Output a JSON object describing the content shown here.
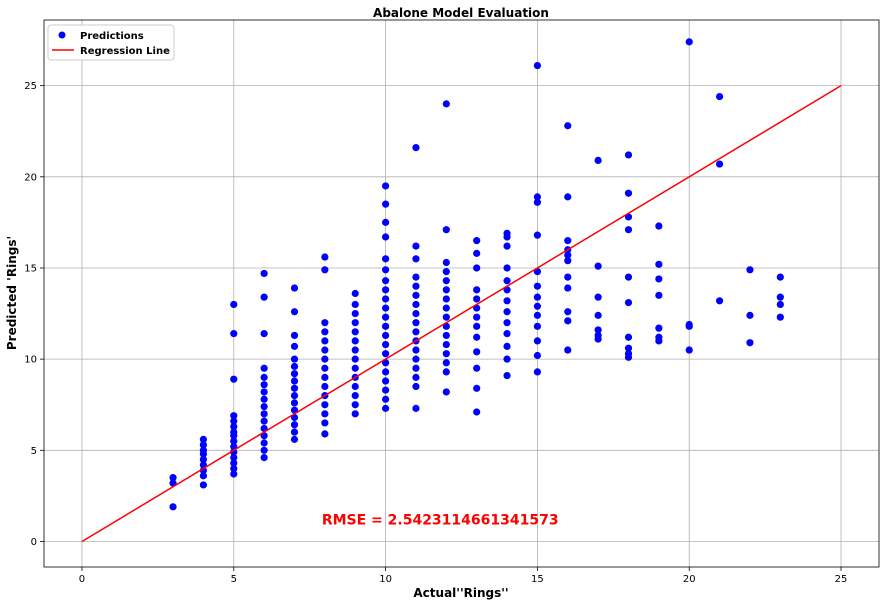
{
  "chart_data": {
    "type": "scatter",
    "title": "Abalone Model Evaluation",
    "xlabel": "Actual''Rings''",
    "ylabel": "Predicted 'Rings'",
    "xlim": [
      -1.25,
      26.25
    ],
    "ylim": [
      -1.4,
      28.6
    ],
    "xticks": [
      0,
      5,
      10,
      15,
      20,
      25
    ],
    "yticks": [
      0,
      5,
      10,
      15,
      20,
      25
    ],
    "grid": true,
    "legend_position": "top-left",
    "legend": [
      "Predictions",
      "Regression Line"
    ],
    "colors": {
      "predictions": "#0000ff",
      "regression": "#ff0000",
      "annotation": "#ff0000",
      "grid": "#b0b0b0"
    },
    "annotation": {
      "text": "RMSE = 2.5423114661341573",
      "x": 7.9,
      "y": 1.2
    },
    "series": [
      {
        "name": "Predictions",
        "kind": "scatter",
        "points": [
          [
            3,
            1.9
          ],
          [
            3,
            3.2
          ],
          [
            3,
            3.5
          ],
          [
            4,
            3.1
          ],
          [
            4,
            3.6
          ],
          [
            4,
            3.9
          ],
          [
            4,
            4.2
          ],
          [
            4,
            4.5
          ],
          [
            4,
            4.8
          ],
          [
            4,
            5.0
          ],
          [
            4,
            5.3
          ],
          [
            4,
            5.6
          ],
          [
            5,
            3.7
          ],
          [
            5,
            4.0
          ],
          [
            5,
            4.3
          ],
          [
            5,
            4.6
          ],
          [
            5,
            4.9
          ],
          [
            5,
            5.2
          ],
          [
            5,
            5.5
          ],
          [
            5,
            5.8
          ],
          [
            5,
            6.0
          ],
          [
            5,
            6.3
          ],
          [
            5,
            6.6
          ],
          [
            5,
            6.9
          ],
          [
            5,
            8.9
          ],
          [
            5,
            11.4
          ],
          [
            5,
            13.0
          ],
          [
            6,
            4.6
          ],
          [
            6,
            5.0
          ],
          [
            6,
            5.4
          ],
          [
            6,
            5.8
          ],
          [
            6,
            6.2
          ],
          [
            6,
            6.6
          ],
          [
            6,
            7.0
          ],
          [
            6,
            7.4
          ],
          [
            6,
            7.8
          ],
          [
            6,
            8.2
          ],
          [
            6,
            8.6
          ],
          [
            6,
            9.0
          ],
          [
            6,
            9.5
          ],
          [
            6,
            11.4
          ],
          [
            6,
            13.4
          ],
          [
            6,
            14.7
          ],
          [
            7,
            5.6
          ],
          [
            7,
            6.0
          ],
          [
            7,
            6.4
          ],
          [
            7,
            6.8
          ],
          [
            7,
            7.2
          ],
          [
            7,
            7.6
          ],
          [
            7,
            8.0
          ],
          [
            7,
            8.4
          ],
          [
            7,
            8.8
          ],
          [
            7,
            9.2
          ],
          [
            7,
            9.6
          ],
          [
            7,
            10.0
          ],
          [
            7,
            10.7
          ],
          [
            7,
            11.3
          ],
          [
            7,
            12.6
          ],
          [
            7,
            13.9
          ],
          [
            8,
            5.9
          ],
          [
            8,
            6.5
          ],
          [
            8,
            7.0
          ],
          [
            8,
            7.5
          ],
          [
            8,
            8.0
          ],
          [
            8,
            8.5
          ],
          [
            8,
            9.0
          ],
          [
            8,
            9.5
          ],
          [
            8,
            10.0
          ],
          [
            8,
            10.5
          ],
          [
            8,
            11.0
          ],
          [
            8,
            11.5
          ],
          [
            8,
            12.0
          ],
          [
            8,
            14.9
          ],
          [
            8,
            15.6
          ],
          [
            9,
            7.0
          ],
          [
            9,
            7.5
          ],
          [
            9,
            8.0
          ],
          [
            9,
            8.5
          ],
          [
            9,
            9.0
          ],
          [
            9,
            9.5
          ],
          [
            9,
            10.0
          ],
          [
            9,
            10.5
          ],
          [
            9,
            11.0
          ],
          [
            9,
            11.5
          ],
          [
            9,
            12.0
          ],
          [
            9,
            12.5
          ],
          [
            9,
            13.0
          ],
          [
            9,
            13.6
          ],
          [
            10,
            7.3
          ],
          [
            10,
            7.8
          ],
          [
            10,
            8.3
          ],
          [
            10,
            8.8
          ],
          [
            10,
            9.3
          ],
          [
            10,
            9.8
          ],
          [
            10,
            10.3
          ],
          [
            10,
            10.8
          ],
          [
            10,
            11.3
          ],
          [
            10,
            11.8
          ],
          [
            10,
            12.3
          ],
          [
            10,
            12.8
          ],
          [
            10,
            13.3
          ],
          [
            10,
            13.8
          ],
          [
            10,
            14.3
          ],
          [
            10,
            14.9
          ],
          [
            10,
            15.5
          ],
          [
            10,
            16.7
          ],
          [
            10,
            17.5
          ],
          [
            10,
            18.5
          ],
          [
            10,
            19.5
          ],
          [
            11,
            7.3
          ],
          [
            11,
            8.5
          ],
          [
            11,
            9.0
          ],
          [
            11,
            9.5
          ],
          [
            11,
            10.0
          ],
          [
            11,
            10.5
          ],
          [
            11,
            11.0
          ],
          [
            11,
            11.5
          ],
          [
            11,
            12.0
          ],
          [
            11,
            12.5
          ],
          [
            11,
            13.0
          ],
          [
            11,
            13.5
          ],
          [
            11,
            14.0
          ],
          [
            11,
            14.5
          ],
          [
            11,
            15.5
          ],
          [
            11,
            16.2
          ],
          [
            11,
            21.6
          ],
          [
            12,
            8.2
          ],
          [
            12,
            9.3
          ],
          [
            12,
            9.8
          ],
          [
            12,
            10.3
          ],
          [
            12,
            10.8
          ],
          [
            12,
            11.3
          ],
          [
            12,
            11.8
          ],
          [
            12,
            12.3
          ],
          [
            12,
            12.8
          ],
          [
            12,
            13.3
          ],
          [
            12,
            13.8
          ],
          [
            12,
            14.3
          ],
          [
            12,
            14.8
          ],
          [
            12,
            15.3
          ],
          [
            12,
            17.1
          ],
          [
            12,
            24.0
          ],
          [
            13,
            7.1
          ],
          [
            13,
            8.4
          ],
          [
            13,
            9.5
          ],
          [
            13,
            10.4
          ],
          [
            13,
            11.2
          ],
          [
            13,
            11.8
          ],
          [
            13,
            12.3
          ],
          [
            13,
            12.8
          ],
          [
            13,
            13.3
          ],
          [
            13,
            13.8
          ],
          [
            13,
            15.0
          ],
          [
            13,
            15.8
          ],
          [
            13,
            16.5
          ],
          [
            14,
            9.1
          ],
          [
            14,
            10.0
          ],
          [
            14,
            10.7
          ],
          [
            14,
            11.4
          ],
          [
            14,
            12.0
          ],
          [
            14,
            12.6
          ],
          [
            14,
            13.2
          ],
          [
            14,
            13.8
          ],
          [
            14,
            14.3
          ],
          [
            14,
            15.0
          ],
          [
            14,
            16.2
          ],
          [
            14,
            16.7
          ],
          [
            14,
            16.9
          ],
          [
            15,
            9.3
          ],
          [
            15,
            10.2
          ],
          [
            15,
            11.0
          ],
          [
            15,
            11.8
          ],
          [
            15,
            12.4
          ],
          [
            15,
            12.9
          ],
          [
            15,
            13.4
          ],
          [
            15,
            14.0
          ],
          [
            15,
            14.8
          ],
          [
            15,
            16.8
          ],
          [
            15,
            18.6
          ],
          [
            15,
            18.9
          ],
          [
            15,
            26.1
          ],
          [
            16,
            10.5
          ],
          [
            16,
            12.1
          ],
          [
            16,
            12.6
          ],
          [
            16,
            13.9
          ],
          [
            16,
            14.5
          ],
          [
            16,
            15.4
          ],
          [
            16,
            15.7
          ],
          [
            16,
            16.0
          ],
          [
            16,
            16.5
          ],
          [
            16,
            18.9
          ],
          [
            16,
            22.8
          ],
          [
            17,
            11.1
          ],
          [
            17,
            11.3
          ],
          [
            17,
            11.6
          ],
          [
            17,
            12.4
          ],
          [
            17,
            13.4
          ],
          [
            17,
            15.1
          ],
          [
            17,
            20.9
          ],
          [
            18,
            10.1
          ],
          [
            18,
            10.3
          ],
          [
            18,
            10.6
          ],
          [
            18,
            11.2
          ],
          [
            18,
            13.1
          ],
          [
            18,
            14.5
          ],
          [
            18,
            17.1
          ],
          [
            18,
            17.8
          ],
          [
            18,
            19.1
          ],
          [
            18,
            21.2
          ],
          [
            19,
            11.0
          ],
          [
            19,
            11.2
          ],
          [
            19,
            11.7
          ],
          [
            19,
            13.5
          ],
          [
            19,
            14.4
          ],
          [
            19,
            15.2
          ],
          [
            19,
            17.3
          ],
          [
            20,
            10.5
          ],
          [
            20,
            11.8
          ],
          [
            20,
            11.9
          ],
          [
            20,
            27.4
          ],
          [
            21,
            13.2
          ],
          [
            21,
            20.7
          ],
          [
            21,
            24.4
          ],
          [
            22,
            10.9
          ],
          [
            22,
            12.4
          ],
          [
            22,
            14.9
          ],
          [
            23,
            12.3
          ],
          [
            23,
            13.0
          ],
          [
            23,
            13.4
          ],
          [
            23,
            14.5
          ]
        ]
      },
      {
        "name": "Regression Line",
        "kind": "line",
        "points": [
          [
            0,
            0
          ],
          [
            25,
            25
          ]
        ]
      }
    ]
  }
}
